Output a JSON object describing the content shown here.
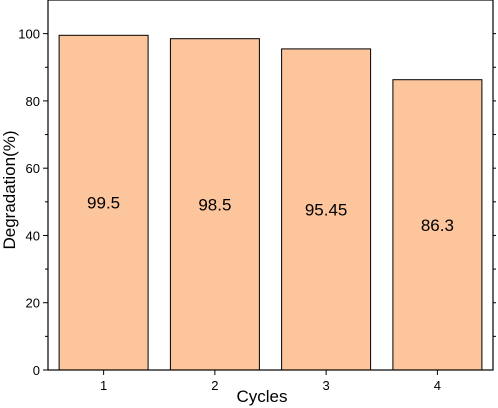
{
  "chart_data": {
    "type": "bar",
    "title": "",
    "xlabel": "Cycles",
    "ylabel": "Degradation(%)",
    "categories": [
      "1",
      "2",
      "3",
      "4"
    ],
    "values": [
      99.5,
      98.5,
      95.45,
      86.3
    ],
    "data_labels": [
      "99.5",
      "98.5",
      "95.45",
      "86.3"
    ],
    "ylim": [
      0,
      110
    ],
    "yticks": [
      0,
      20,
      40,
      60,
      80,
      100
    ],
    "grid": false,
    "legend": "none",
    "bar_color": "#FCC59C",
    "bar_edge_color": "#000000"
  }
}
